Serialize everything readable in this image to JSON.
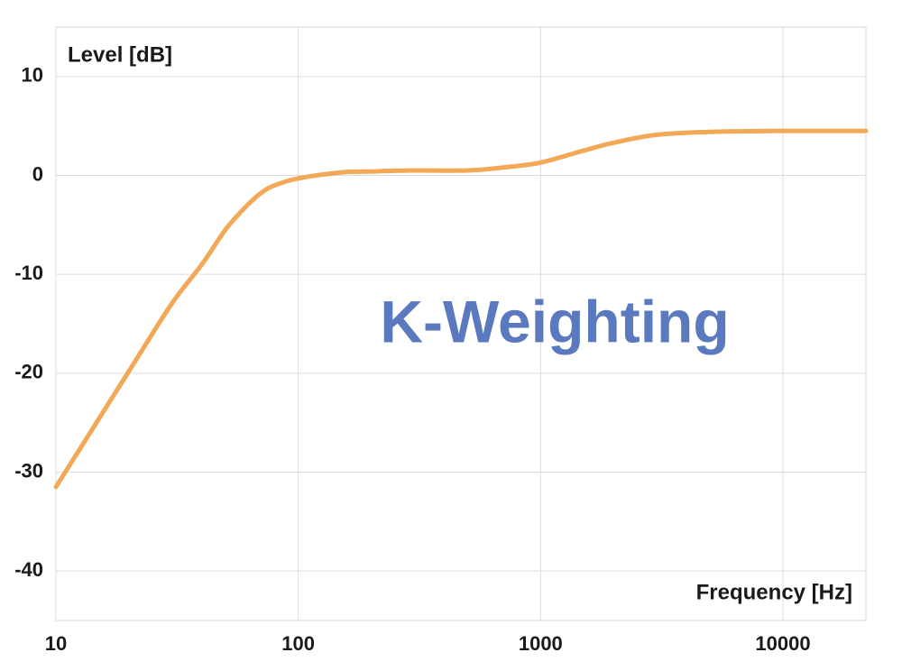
{
  "chart_data": {
    "type": "line",
    "y_label": "Level [dB]",
    "x_label": "Frequency [Hz]",
    "annotation": "K-Weighting",
    "annotation_color": "#5a79be",
    "x": [
      10,
      20,
      30,
      40,
      50,
      60,
      70,
      80,
      100,
      150,
      200,
      300,
      500,
      700,
      1000,
      1500,
      2000,
      3000,
      5000,
      10000,
      22000
    ],
    "series": [
      {
        "name": "K-Weighting",
        "color": "#f2a856",
        "values": [
          -31.5,
          -19.8,
          -13,
          -9,
          -5.5,
          -3.3,
          -1.8,
          -1,
          -0.3,
          0.3,
          0.4,
          0.5,
          0.5,
          0.8,
          1.3,
          2.5,
          3.3,
          4.1,
          4.4,
          4.5,
          4.5
        ]
      }
    ],
    "xlim": [
      10,
      22000
    ],
    "xticks": [
      10,
      100,
      1000,
      10000
    ],
    "xscale": "log",
    "ylim": [
      -45,
      15
    ],
    "yticks": [
      -40,
      -30,
      -20,
      -10,
      0,
      10
    ],
    "grid": true
  }
}
